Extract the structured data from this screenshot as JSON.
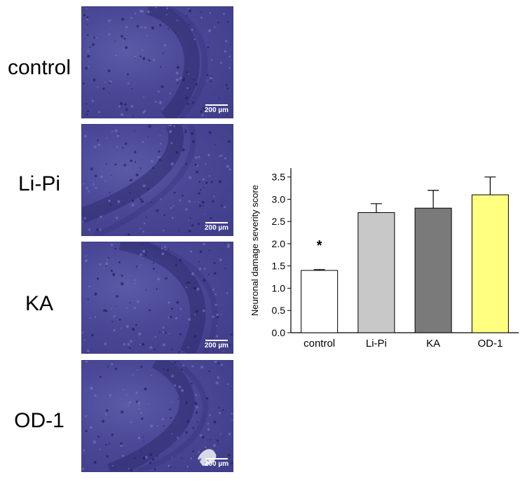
{
  "panels": [
    {
      "label": "control",
      "scale": "200 µm"
    },
    {
      "label": "Li-Pi",
      "scale": "200 µm"
    },
    {
      "label": "KA",
      "scale": "200 µm"
    },
    {
      "label": "OD-1",
      "scale": "200 µm"
    }
  ],
  "chart_data": {
    "type": "bar",
    "categories": [
      "control",
      "Li-Pi",
      "KA",
      "OD-1"
    ],
    "values": [
      1.4,
      2.7,
      2.8,
      3.1
    ],
    "errors": [
      0.02,
      0.2,
      0.4,
      0.4
    ],
    "bar_colors": [
      "#ffffff",
      "#c8c8c8",
      "#7a7a7a",
      "#ffff80"
    ],
    "annotations": [
      {
        "category": "control",
        "text": "*"
      }
    ],
    "title": "",
    "xlabel": "",
    "ylabel": "Neuronal damage severity score",
    "ylim": [
      0,
      3.7
    ],
    "yticks": [
      "0.0",
      "0.5",
      "1.0",
      "1.5",
      "2.0",
      "2.5",
      "3.0",
      "3.5"
    ],
    "grid": false,
    "legend": "none"
  }
}
